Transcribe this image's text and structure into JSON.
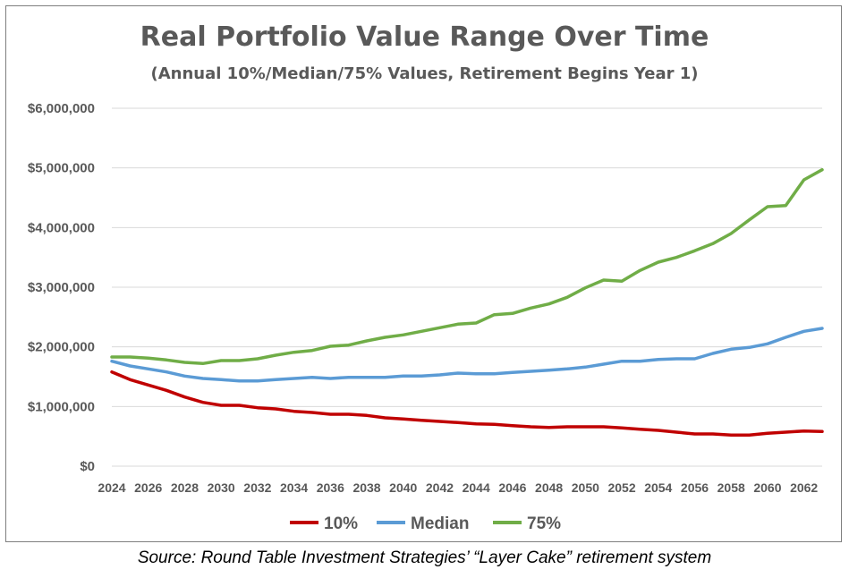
{
  "chart_data": {
    "type": "line",
    "title": "Real Portfolio Value Range Over Time",
    "subtitle": "(Annual 10%/Median/75% Values, Retirement Begins Year 1)",
    "source": "Source: Round Table Investment Strategies’ “Layer Cake” retirement system",
    "ylim": [
      0,
      6000000
    ],
    "y_ticks": [
      0,
      1000000,
      2000000,
      3000000,
      4000000,
      5000000,
      6000000
    ],
    "y_tick_labels": [
      "$0",
      "$1,000,000",
      "$2,000,000",
      "$3,000,000",
      "$4,000,000",
      "$5,000,000",
      "$6,000,000"
    ],
    "x": [
      2024,
      2025,
      2026,
      2027,
      2028,
      2029,
      2030,
      2031,
      2032,
      2033,
      2034,
      2035,
      2036,
      2037,
      2038,
      2039,
      2040,
      2041,
      2042,
      2043,
      2044,
      2045,
      2046,
      2047,
      2048,
      2049,
      2050,
      2051,
      2052,
      2053,
      2054,
      2055,
      2056,
      2057,
      2058,
      2059,
      2060,
      2061,
      2062,
      2063
    ],
    "x_tick_labels": [
      "2024",
      "2026",
      "2028",
      "2030",
      "2032",
      "2034",
      "2036",
      "2038",
      "2040",
      "2042",
      "2044",
      "2046",
      "2048",
      "2050",
      "2052",
      "2054",
      "2056",
      "2058",
      "2060",
      "2062"
    ],
    "grid": true,
    "legend_position": "bottom",
    "series": [
      {
        "name": "10%",
        "color": "#c00000",
        "values": [
          1580000,
          1450000,
          1360000,
          1270000,
          1160000,
          1070000,
          1020000,
          1020000,
          980000,
          960000,
          920000,
          900000,
          870000,
          870000,
          850000,
          810000,
          790000,
          770000,
          750000,
          730000,
          710000,
          700000,
          680000,
          660000,
          650000,
          660000,
          660000,
          660000,
          640000,
          620000,
          600000,
          570000,
          540000,
          540000,
          520000,
          520000,
          550000,
          570000,
          590000,
          580000
        ]
      },
      {
        "name": "Median",
        "color": "#5b9bd5",
        "values": [
          1760000,
          1680000,
          1630000,
          1580000,
          1510000,
          1470000,
          1450000,
          1430000,
          1430000,
          1450000,
          1470000,
          1490000,
          1470000,
          1490000,
          1490000,
          1490000,
          1510000,
          1510000,
          1530000,
          1560000,
          1550000,
          1550000,
          1570000,
          1590000,
          1610000,
          1630000,
          1660000,
          1710000,
          1760000,
          1760000,
          1790000,
          1800000,
          1800000,
          1890000,
          1960000,
          1990000,
          2050000,
          2160000,
          2260000,
          2310000
        ]
      },
      {
        "name": "75%",
        "color": "#70ad47",
        "values": [
          1830000,
          1830000,
          1810000,
          1780000,
          1740000,
          1720000,
          1770000,
          1770000,
          1800000,
          1860000,
          1910000,
          1940000,
          2010000,
          2030000,
          2100000,
          2160000,
          2200000,
          2260000,
          2320000,
          2380000,
          2400000,
          2540000,
          2560000,
          2650000,
          2720000,
          2830000,
          2990000,
          3120000,
          3100000,
          3280000,
          3420000,
          3500000,
          3610000,
          3730000,
          3900000,
          4130000,
          4350000,
          4370000,
          4800000,
          4970000
        ]
      }
    ]
  }
}
